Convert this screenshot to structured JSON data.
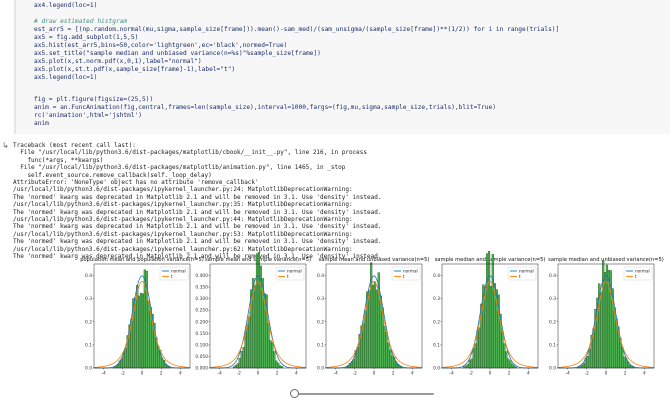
{
  "code_cell": {
    "lines": [
      {
        "kind": "code",
        "text": "ax4.legend(loc=1)"
      },
      {
        "kind": "blank",
        "text": ""
      },
      {
        "kind": "comment",
        "text": "# draw estimated histgram"
      },
      {
        "kind": "code",
        "text": "est_arr5 = [(np.random.normal(mu,sigma,sample_size[frame])).mean()-sam_med)/(sam_unsigma/(sample_size[frame])**(1/2)) for i in range(trials)]"
      },
      {
        "kind": "code",
        "text": "ax5 = fig.add_subplot(1,5,5)"
      },
      {
        "kind": "code",
        "text": "ax5.hist(est_arr5,bins=50,color='lightgreen',ec='black',normed=True)"
      },
      {
        "kind": "code",
        "text": "ax5.set_title(\"sample median and unbiased variance(n=%s)\"%sample_size[frame])"
      },
      {
        "kind": "code",
        "text": "ax5.plot(x,st.norm.pdf(x,0,1),label=\"normal\")"
      },
      {
        "kind": "code",
        "text": "ax5.plot(x,st.t.pdf(x,sample_size[frame]-1),label=\"t\")"
      },
      {
        "kind": "code",
        "text": "ax5.legend(loc=1)"
      },
      {
        "kind": "blank",
        "text": ""
      },
      {
        "kind": "blank",
        "text": ""
      },
      {
        "kind": "code",
        "text": "fig = plt.figure(figsize=(25,5))"
      },
      {
        "kind": "code",
        "text": "anim = an.FuncAnimation(fig,central,frames=len(sample_size),interval=1000,fargs=(fig,mu,sigma,sample_size,trials),blit=True)"
      },
      {
        "kind": "code",
        "text": "rc('animation',html='jshtml')"
      },
      {
        "kind": "code",
        "text": "anim"
      }
    ]
  },
  "output": {
    "icon": "output-arrow-icon",
    "lines": [
      "Traceback (most recent call last):",
      "  File \"/usr/local/lib/python3.6/dist-packages/matplotlib/cbook/__init__.py\", line 216, in process",
      "    func(*args, **kwargs)",
      "  File \"/usr/local/lib/python3.6/dist-packages/matplotlib/animation.py\", line 1465, in _stop",
      "    self.event_source.remove_callback(self._loop_delay)",
      "AttributeError: 'NoneType' object has no attribute 'remove_callback'",
      "/usr/local/lib/python3.6/dist-packages/ipykernel_launcher.py:24: MatplotlibDeprecationWarning:",
      "The 'normed' kwarg was deprecated in Matplotlib 2.1 and will be removed in 3.1. Use 'density' instead.",
      "/usr/local/lib/python3.6/dist-packages/ipykernel_launcher.py:35: MatplotlibDeprecationWarning:",
      "The 'normed' kwarg was deprecated in Matplotlib 2.1 and will be removed in 3.1. Use 'density' instead.",
      "/usr/local/lib/python3.6/dist-packages/ipykernel_launcher.py:44: MatplotlibDeprecationWarning:",
      "The 'normed' kwarg was deprecated in Matplotlib 2.1 and will be removed in 3.1. Use 'density' instead.",
      "/usr/local/lib/python3.6/dist-packages/ipykernel_launcher.py:53: MatplotlibDeprecationWarning:",
      "The 'normed' kwarg was deprecated in Matplotlib 2.1 and will be removed in 3.1. Use 'density' instead.",
      "/usr/local/lib/python3.6/dist-packages/ipykernel_launcher.py:62: MatplotlibDeprecationWarning:",
      "The 'normed' kwarg was deprecated in Matplotlib 2.1 and will be removed in 3.1. Use 'density' instead."
    ]
  },
  "colors": {
    "bar_fill": "#4caf50",
    "bar_edge": "#1b3d1b",
    "normal_line": "#1f77b4",
    "t_line": "#ff7f0e",
    "code_bg": "#f7f7f7"
  },
  "chart_data": [
    {
      "type": "bar",
      "title": "population mean and population variance(n=5)",
      "xlim": [
        -5,
        5
      ],
      "ylim": [
        0,
        0.45
      ],
      "xticks": [
        "-4",
        "-2",
        "0",
        "2",
        "4"
      ],
      "yticks": [
        "0.0",
        "0.1",
        "0.2",
        "0.3",
        "0.4"
      ],
      "series": [
        {
          "name": "normal"
        },
        {
          "name": "t"
        }
      ],
      "legend": "top-right",
      "sd": 1.0
    },
    {
      "type": "bar",
      "title": "sample mean and sample variance(n=5)",
      "xlim": [
        -5,
        5
      ],
      "ylim": [
        0,
        0.45
      ],
      "xticks": [
        "-4",
        "-2",
        "0",
        "2",
        "4"
      ],
      "yticks": [
        "0.000",
        "0.050",
        "0.100",
        "0.150",
        "0.200",
        "0.250",
        "0.300",
        "0.350",
        "0.400"
      ],
      "series": [
        {
          "name": "normal"
        },
        {
          "name": "t"
        }
      ],
      "legend": "top-right",
      "sd": 0.85
    },
    {
      "type": "bar",
      "title": "sample mean and unbiased variance(n=5)",
      "xlim": [
        -5,
        5
      ],
      "ylim": [
        0,
        0.45
      ],
      "xticks": [
        "-4",
        "-2",
        "0",
        "2",
        "4"
      ],
      "yticks": [
        "0.0",
        "0.1",
        "0.2",
        "0.3",
        "0.4"
      ],
      "series": [
        {
          "name": "normal"
        },
        {
          "name": "t"
        }
      ],
      "legend": "top-right",
      "sd": 1.0
    },
    {
      "type": "bar",
      "title": "sample median and sample variance(n=5)",
      "xlim": [
        -5,
        5
      ],
      "ylim": [
        0,
        0.45
      ],
      "xticks": [
        "-4",
        "-2",
        "0",
        "2",
        "4"
      ],
      "yticks": [
        "0.0",
        "0.1",
        "0.2",
        "0.3",
        "0.4"
      ],
      "series": [
        {
          "name": "normal"
        },
        {
          "name": "t"
        }
      ],
      "legend": "top-right",
      "sd": 0.9
    },
    {
      "type": "bar",
      "title": "sample median and unbiased variance(n=5)",
      "xlim": [
        -5,
        5
      ],
      "ylim": [
        0,
        0.45
      ],
      "xticks": [
        "-4",
        "-2",
        "0",
        "2",
        "4"
      ],
      "yticks": [
        "0.0",
        "0.1",
        "0.2",
        "0.3",
        "0.4"
      ],
      "series": [
        {
          "name": "normal"
        },
        {
          "name": "t"
        }
      ],
      "legend": "top-right",
      "sd": 0.95
    }
  ],
  "slider": {
    "value": 0.0
  }
}
